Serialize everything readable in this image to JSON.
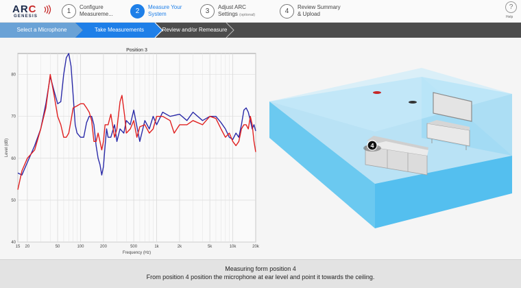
{
  "logo": {
    "text_main_a": "AR",
    "text_main_c": "C",
    "text_sub": "GENESIS",
    "icon": "sound-waves-icon"
  },
  "steps": [
    {
      "num": "1",
      "line1": "Configure",
      "line2": "Measureme...",
      "state": "done"
    },
    {
      "num": "2",
      "line1": "Measure Your",
      "line2": "System",
      "state": "active"
    },
    {
      "num": "3",
      "line1": "Adjust ARC",
      "line2": "Settings",
      "optional": "(optional)",
      "state": "pending"
    },
    {
      "num": "4",
      "line1": "Review Summary",
      "line2": "& Upload",
      "state": "pending"
    }
  ],
  "help": {
    "glyph": "?",
    "label": "Help"
  },
  "tabs": [
    {
      "label": "Select a Microphone",
      "state": "done"
    },
    {
      "label": "Take Measurements",
      "state": "active"
    },
    {
      "label": "Review and/or Remeasure",
      "state": "pending"
    }
  ],
  "chart_data": {
    "type": "line",
    "title": "Position 3",
    "xlabel": "Frequency (Hz)",
    "ylabel": "Level (dB)",
    "xscale": "log",
    "xlim": [
      15,
      20000
    ],
    "ylim": [
      40,
      85
    ],
    "x_ticks": [
      {
        "v": 15,
        "l": "15"
      },
      {
        "v": 20,
        "l": "20"
      },
      {
        "v": 50,
        "l": "50"
      },
      {
        "v": 100,
        "l": "100"
      },
      {
        "v": 200,
        "l": "200"
      },
      {
        "v": 500,
        "l": "500"
      },
      {
        "v": 1000,
        "l": "1k"
      },
      {
        "v": 2000,
        "l": "2k"
      },
      {
        "v": 5000,
        "l": "5k"
      },
      {
        "v": 10000,
        "l": "10k"
      },
      {
        "v": 20000,
        "l": "20k"
      }
    ],
    "y_ticks": [
      40,
      50,
      60,
      70,
      80
    ],
    "grid": true,
    "series": [
      {
        "color": "#2a2aa8",
        "points": [
          [
            15,
            56.5
          ],
          [
            17,
            56
          ],
          [
            20,
            59
          ],
          [
            25,
            63
          ],
          [
            30,
            67
          ],
          [
            35,
            73
          ],
          [
            40,
            79.5
          ],
          [
            45,
            76
          ],
          [
            50,
            73
          ],
          [
            55,
            73.5
          ],
          [
            60,
            80
          ],
          [
            65,
            84
          ],
          [
            70,
            85
          ],
          [
            75,
            82
          ],
          [
            80,
            75
          ],
          [
            85,
            68
          ],
          [
            90,
            66
          ],
          [
            100,
            65
          ],
          [
            110,
            65
          ],
          [
            120,
            68.5
          ],
          [
            130,
            70
          ],
          [
            140,
            70
          ],
          [
            150,
            68
          ],
          [
            160,
            63
          ],
          [
            170,
            60
          ],
          [
            180,
            58.5
          ],
          [
            190,
            56
          ],
          [
            200,
            58
          ],
          [
            210,
            63
          ],
          [
            220,
            67
          ],
          [
            230,
            65
          ],
          [
            250,
            65
          ],
          [
            280,
            68
          ],
          [
            300,
            64
          ],
          [
            330,
            67
          ],
          [
            370,
            66
          ],
          [
            400,
            69
          ],
          [
            450,
            68
          ],
          [
            500,
            71.5
          ],
          [
            600,
            64
          ],
          [
            700,
            69
          ],
          [
            800,
            67
          ],
          [
            900,
            70
          ],
          [
            1000,
            68
          ],
          [
            1200,
            71
          ],
          [
            1500,
            70
          ],
          [
            2000,
            70.5
          ],
          [
            2500,
            69
          ],
          [
            3000,
            71
          ],
          [
            4000,
            69
          ],
          [
            5000,
            70
          ],
          [
            6000,
            70
          ],
          [
            7000,
            68.5
          ],
          [
            8000,
            67
          ],
          [
            9000,
            65
          ],
          [
            10000,
            64.5
          ],
          [
            11000,
            66
          ],
          [
            12000,
            65
          ],
          [
            13000,
            68
          ],
          [
            14000,
            71.5
          ],
          [
            15000,
            72
          ],
          [
            16000,
            71
          ],
          [
            17000,
            69
          ],
          [
            18000,
            67
          ],
          [
            19000,
            68
          ],
          [
            20000,
            66.5
          ]
        ]
      },
      {
        "color": "#e02020",
        "points": [
          [
            15,
            52.5
          ],
          [
            17,
            57
          ],
          [
            20,
            60
          ],
          [
            25,
            62
          ],
          [
            30,
            67
          ],
          [
            35,
            72
          ],
          [
            40,
            80
          ],
          [
            45,
            75
          ],
          [
            50,
            70
          ],
          [
            55,
            68
          ],
          [
            60,
            65
          ],
          [
            65,
            65
          ],
          [
            70,
            66
          ],
          [
            75,
            69
          ],
          [
            80,
            72
          ],
          [
            90,
            72.5
          ],
          [
            100,
            73
          ],
          [
            110,
            73
          ],
          [
            120,
            72
          ],
          [
            130,
            71
          ],
          [
            140,
            69
          ],
          [
            150,
            64
          ],
          [
            160,
            64
          ],
          [
            170,
            66
          ],
          [
            180,
            64
          ],
          [
            190,
            62
          ],
          [
            200,
            64
          ],
          [
            210,
            68
          ],
          [
            230,
            68
          ],
          [
            250,
            70.5
          ],
          [
            280,
            65
          ],
          [
            300,
            67
          ],
          [
            330,
            73.5
          ],
          [
            350,
            75
          ],
          [
            380,
            70
          ],
          [
            400,
            66
          ],
          [
            450,
            67
          ],
          [
            500,
            69
          ],
          [
            550,
            65
          ],
          [
            600,
            67.5
          ],
          [
            700,
            68
          ],
          [
            800,
            66
          ],
          [
            900,
            67
          ],
          [
            1000,
            70
          ],
          [
            1200,
            70
          ],
          [
            1500,
            69
          ],
          [
            1700,
            66
          ],
          [
            2000,
            68
          ],
          [
            2500,
            68
          ],
          [
            3000,
            69
          ],
          [
            4000,
            68
          ],
          [
            5000,
            70
          ],
          [
            6000,
            69.5
          ],
          [
            7000,
            67
          ],
          [
            8000,
            65
          ],
          [
            9000,
            66
          ],
          [
            10000,
            64
          ],
          [
            11000,
            63
          ],
          [
            12000,
            64
          ],
          [
            13000,
            67
          ],
          [
            14000,
            68
          ],
          [
            15000,
            68
          ],
          [
            16000,
            67
          ],
          [
            17000,
            70
          ],
          [
            18000,
            68
          ],
          [
            19000,
            64
          ],
          [
            20000,
            61.5
          ]
        ]
      }
    ]
  },
  "room": {
    "marker_label": "4"
  },
  "footer": {
    "line1": "Measuring form position 4",
    "line2": "From position 4 position the microphone at ear level and point it towards the ceiling."
  }
}
